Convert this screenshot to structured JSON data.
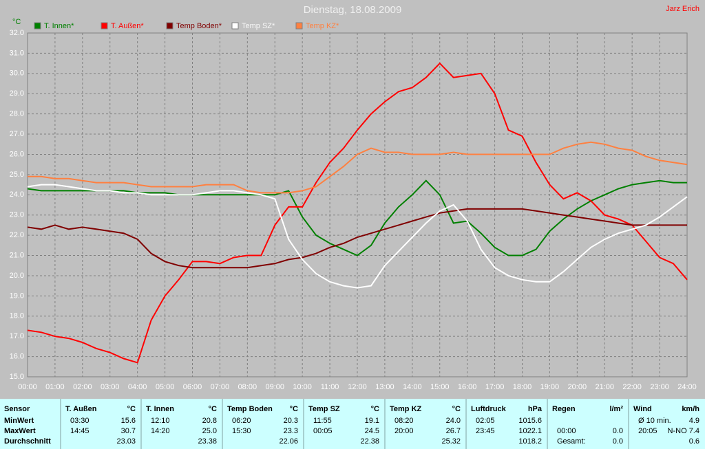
{
  "chart_data": {
    "type": "line",
    "title": "Dienstag, 18.08.2009",
    "author": "Jarz Erich",
    "y_label": "°C",
    "x": [
      0,
      0.5,
      1,
      1.5,
      2,
      2.5,
      3,
      3.5,
      4,
      4.5,
      5,
      5.5,
      6,
      6.5,
      7,
      7.5,
      8,
      8.5,
      9,
      9.5,
      10,
      10.5,
      11,
      11.5,
      12,
      12.5,
      13,
      13.5,
      14,
      14.5,
      15,
      15.5,
      16,
      16.5,
      17,
      17.5,
      18,
      18.5,
      19,
      19.5,
      20,
      20.5,
      21,
      21.5,
      22,
      22.5,
      23,
      23.5,
      24
    ],
    "series": [
      {
        "name": "T. Innen*",
        "color": "#008000",
        "values": [
          24.3,
          24.2,
          24.2,
          24.2,
          24.2,
          24.2,
          24.2,
          24.2,
          24.1,
          24.1,
          24.1,
          24.0,
          24.0,
          24.0,
          24.0,
          24.0,
          24.0,
          24.0,
          24.0,
          24.2,
          22.9,
          22.0,
          21.6,
          21.3,
          21.0,
          21.5,
          22.6,
          23.4,
          24.0,
          24.7,
          24.0,
          22.6,
          22.7,
          22.1,
          21.4,
          21.0,
          21.0,
          21.3,
          22.2,
          22.8,
          23.3,
          23.7,
          24.0,
          24.3,
          24.5,
          24.6,
          24.7,
          24.6,
          24.6
        ]
      },
      {
        "name": "T. Außen*",
        "color": "#ff0000",
        "values": [
          17.3,
          17.2,
          17.0,
          16.9,
          16.7,
          16.4,
          16.2,
          15.9,
          15.7,
          17.8,
          19.0,
          19.8,
          20.7,
          20.7,
          20.6,
          20.9,
          21.0,
          21.0,
          22.5,
          23.4,
          23.4,
          24.6,
          25.6,
          26.3,
          27.2,
          28.0,
          28.6,
          29.1,
          29.3,
          29.8,
          30.5,
          29.8,
          29.9,
          30.0,
          29.0,
          27.2,
          26.9,
          25.6,
          24.5,
          23.8,
          24.1,
          23.7,
          23.0,
          22.8,
          22.5,
          21.7,
          20.9,
          20.6,
          19.8
        ]
      },
      {
        "name": "Temp Boden*",
        "color": "#800000",
        "values": [
          22.4,
          22.3,
          22.5,
          22.3,
          22.4,
          22.3,
          22.2,
          22.1,
          21.8,
          21.1,
          20.7,
          20.5,
          20.4,
          20.4,
          20.4,
          20.4,
          20.4,
          20.5,
          20.6,
          20.8,
          20.9,
          21.1,
          21.4,
          21.6,
          21.9,
          22.1,
          22.3,
          22.5,
          22.7,
          22.9,
          23.1,
          23.2,
          23.3,
          23.3,
          23.3,
          23.3,
          23.3,
          23.2,
          23.1,
          23.0,
          22.9,
          22.8,
          22.7,
          22.6,
          22.5,
          22.5,
          22.5,
          22.5,
          22.5
        ]
      },
      {
        "name": "Temp SZ*",
        "color": "#ffffff",
        "values": [
          24.4,
          24.5,
          24.5,
          24.4,
          24.3,
          24.2,
          24.2,
          24.1,
          24.1,
          24.0,
          24.0,
          24.0,
          24.0,
          24.1,
          24.2,
          24.2,
          24.1,
          24.0,
          23.8,
          21.8,
          20.8,
          20.1,
          19.7,
          19.5,
          19.4,
          19.5,
          20.5,
          21.2,
          21.9,
          22.6,
          23.2,
          23.5,
          22.7,
          21.3,
          20.4,
          20.0,
          19.8,
          19.7,
          19.7,
          20.2,
          20.8,
          21.4,
          21.8,
          22.1,
          22.3,
          22.5,
          22.9,
          23.4,
          23.9
        ]
      },
      {
        "name": "Temp KZ*",
        "color": "#ff8040",
        "values": [
          24.9,
          24.9,
          24.8,
          24.8,
          24.7,
          24.6,
          24.6,
          24.6,
          24.5,
          24.4,
          24.4,
          24.4,
          24.4,
          24.5,
          24.5,
          24.5,
          24.2,
          24.1,
          24.1,
          24.1,
          24.2,
          24.4,
          24.9,
          25.4,
          26.0,
          26.3,
          26.1,
          26.1,
          26.0,
          26.0,
          26.0,
          26.1,
          26.0,
          26.0,
          26.0,
          26.0,
          26.0,
          26.0,
          26.0,
          26.3,
          26.5,
          26.6,
          26.5,
          26.3,
          26.2,
          25.9,
          25.7,
          25.6,
          25.5
        ]
      }
    ],
    "xlim": [
      0,
      24
    ],
    "ylim": [
      15,
      32
    ],
    "grid": true,
    "xticks": [
      {
        "value": 0,
        "label": "00:00"
      },
      {
        "value": 1,
        "label": "01:00"
      },
      {
        "value": 2,
        "label": "02:00"
      },
      {
        "value": 3,
        "label": "03:00"
      },
      {
        "value": 4,
        "label": "04:00"
      },
      {
        "value": 5,
        "label": "05:00"
      },
      {
        "value": 6,
        "label": "06:00"
      },
      {
        "value": 7,
        "label": "07:00"
      },
      {
        "value": 8,
        "label": "08:00"
      },
      {
        "value": 9,
        "label": "09:00"
      },
      {
        "value": 10,
        "label": "10:00"
      },
      {
        "value": 11,
        "label": "11:00"
      },
      {
        "value": 12,
        "label": "12:00"
      },
      {
        "value": 13,
        "label": "13:00"
      },
      {
        "value": 14,
        "label": "14:00"
      },
      {
        "value": 15,
        "label": "15:00"
      },
      {
        "value": 16,
        "label": "16:00"
      },
      {
        "value": 17,
        "label": "17:00"
      },
      {
        "value": 18,
        "label": "18:00"
      },
      {
        "value": 19,
        "label": "19:00"
      },
      {
        "value": 20,
        "label": "20:00"
      },
      {
        "value": 21,
        "label": "21:00"
      },
      {
        "value": 22,
        "label": "22:00"
      },
      {
        "value": 23,
        "label": "23:00"
      },
      {
        "value": 24,
        "label": "24:00"
      }
    ],
    "yticks": [
      {
        "value": 15,
        "label": "15.0"
      },
      {
        "value": 16,
        "label": "16.0"
      },
      {
        "value": 17,
        "label": "17.0"
      },
      {
        "value": 18,
        "label": "18.0"
      },
      {
        "value": 19,
        "label": "19.0"
      },
      {
        "value": 20,
        "label": "20.0"
      },
      {
        "value": 21,
        "label": "21.0"
      },
      {
        "value": 22,
        "label": "22.0"
      },
      {
        "value": 23,
        "label": "23.0"
      },
      {
        "value": 24,
        "label": "24.0"
      },
      {
        "value": 25,
        "label": "25.0"
      },
      {
        "value": 26,
        "label": "26.0"
      },
      {
        "value": 27,
        "label": "27.0"
      },
      {
        "value": 28,
        "label": "28.0"
      },
      {
        "value": 29,
        "label": "29.0"
      },
      {
        "value": 30,
        "label": "30.0"
      },
      {
        "value": 31,
        "label": "31.0"
      },
      {
        "value": 32,
        "label": "32.0"
      }
    ]
  },
  "table": {
    "row_header": "Sensor",
    "row_labels": [
      "MinWert",
      "MaxWert",
      "Durchschnitt"
    ],
    "sections": [
      {
        "title": "T. Außen",
        "unit": "°C",
        "cells": [
          [
            "03:30",
            "15.6"
          ],
          [
            "14:45",
            "30.7"
          ],
          [
            null,
            "23.03"
          ]
        ]
      },
      {
        "title": "T. Innen",
        "unit": "°C",
        "cells": [
          [
            "12:10",
            "20.8"
          ],
          [
            "14:20",
            "25.0"
          ],
          [
            null,
            "23.38"
          ]
        ]
      },
      {
        "title": "Temp Boden",
        "unit": "°C",
        "cells": [
          [
            "06:20",
            "20.3"
          ],
          [
            "15:30",
            "23.3"
          ],
          [
            null,
            "22.06"
          ]
        ]
      },
      {
        "title": "Temp SZ",
        "unit": "°C",
        "cells": [
          [
            "11:55",
            "19.1"
          ],
          [
            "00:05",
            "24.5"
          ],
          [
            null,
            "22.38"
          ]
        ]
      },
      {
        "title": "Temp KZ",
        "unit": "°C",
        "cells": [
          [
            "08:20",
            "24.0"
          ],
          [
            "20:00",
            "26.7"
          ],
          [
            null,
            "25.32"
          ]
        ]
      },
      {
        "title": "Luftdruck",
        "unit": "hPa",
        "cells": [
          [
            "02:05",
            "1015.6"
          ],
          [
            "23:45",
            "1022.1"
          ],
          [
            null,
            "1018.2"
          ]
        ]
      },
      {
        "title": "Regen",
        "unit": "l/m²",
        "cells": [
          [
            null,
            null
          ],
          [
            "00:00",
            "0.0"
          ],
          [
            "Gesamt:",
            "0.0"
          ]
        ]
      },
      {
        "title": "Wind",
        "unit": "km/h",
        "cells": [
          [
            "Ø 10 min.",
            "4.9"
          ],
          [
            "20:05",
            "N-NO 7.4"
          ],
          [
            null,
            "0.6"
          ]
        ]
      }
    ]
  }
}
